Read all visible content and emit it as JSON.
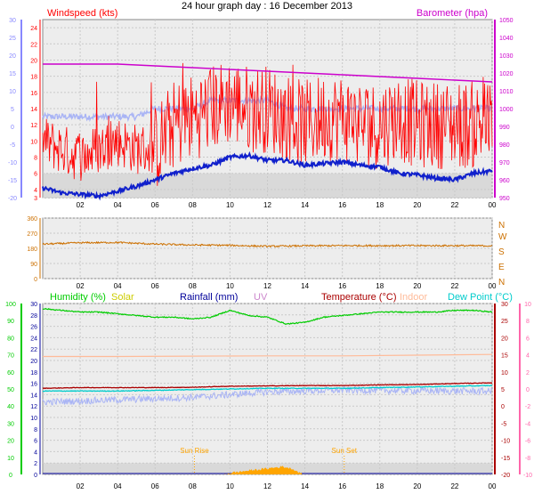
{
  "title": "24 hour graph day : 16 December 2013",
  "colors": {
    "plot_bg": "#ededed",
    "plot_bg_low": "#d9d9d9",
    "grid": "#c9c9c9",
    "wind": "#ff0000",
    "gust_light": "#a9b4f5",
    "wind_dark": "#1020cc",
    "baro": "#cc00cc",
    "dir": "#cc7000",
    "hum": "#00cc00",
    "solar": "#cccc00",
    "rain": "#000099",
    "uv": "#cc88cc",
    "temp": "#aa0000",
    "indoor": "#ffbb99",
    "dew": "#00cccc",
    "axis_left_blue": "#8888ff",
    "axis_pink": "#ff66aa",
    "sun": "#ffa500"
  },
  "chart_data": [
    {
      "type": "line",
      "panel": "wind",
      "left_axis_label": "Windspeed (kts)",
      "right_axis_label": "Barometer (hpa)",
      "x_ticks": [
        "02",
        "04",
        "06",
        "08",
        "10",
        "12",
        "14",
        "16",
        "18",
        "20",
        "22",
        "00"
      ],
      "y_left_ticks": [
        3,
        4,
        6,
        8,
        10,
        12,
        14,
        16,
        18,
        20,
        22,
        24
      ],
      "y_left_range": [
        3,
        25
      ],
      "y_outer_ticks": [
        30,
        25,
        20,
        15,
        10,
        5,
        0,
        -5,
        -10,
        -15,
        -20
      ],
      "y_right_ticks": [
        950,
        960,
        970,
        980,
        990,
        1000,
        1010,
        1020,
        1030,
        1040,
        1050
      ],
      "y_right_range": [
        950,
        1050
      ],
      "series": [
        {
          "name": "Windspeed (kts)",
          "axis": "left",
          "x": [
            0,
            1,
            2,
            3,
            4,
            5,
            6,
            7,
            8,
            9,
            10,
            11,
            12,
            13,
            14,
            15,
            16,
            17,
            18,
            19,
            20,
            21,
            22,
            23,
            24
          ],
          "values": [
            10,
            9,
            8,
            9,
            10,
            9,
            9,
            12,
            13,
            14,
            15,
            14,
            14,
            13,
            12,
            13,
            13,
            12,
            12,
            13,
            12,
            12,
            12,
            12,
            12
          ]
        },
        {
          "name": "Wind gust",
          "axis": "left",
          "x": [
            0,
            1,
            2,
            3,
            4,
            5,
            6,
            7,
            8,
            9,
            10,
            11,
            12,
            13,
            14,
            15,
            16,
            17,
            18,
            19,
            20,
            21,
            22,
            23,
            24
          ],
          "values": [
            13,
            13,
            13,
            13,
            13,
            13,
            14,
            14,
            14,
            15,
            15,
            15,
            15,
            14,
            14,
            14,
            14,
            14,
            14,
            14,
            14,
            14,
            14,
            14,
            14
          ]
        },
        {
          "name": "Barometer (hpa)",
          "axis": "right",
          "x": [
            0,
            2,
            4,
            6,
            8,
            10,
            12,
            14,
            16,
            18,
            20,
            22,
            24
          ],
          "values": [
            1025,
            1025,
            1025,
            1024,
            1023,
            1022,
            1021,
            1020,
            1019,
            1018,
            1017,
            1016,
            1015
          ]
        },
        {
          "name": "Average wind",
          "axis": "left",
          "x": [
            0,
            1,
            2,
            3,
            4,
            5,
            6,
            7,
            8,
            9,
            10,
            11,
            12,
            13,
            14,
            15,
            16,
            17,
            18,
            19,
            20,
            21,
            22,
            23,
            24
          ],
          "values": [
            4.2,
            3.6,
            3.4,
            3.2,
            3.8,
            4.4,
            5.2,
            6.0,
            6.6,
            7.0,
            8.0,
            8.2,
            7.6,
            7.6,
            7.0,
            7.2,
            7.4,
            7.0,
            6.8,
            6.0,
            5.8,
            5.4,
            5.2,
            6.0,
            6.3
          ]
        }
      ]
    },
    {
      "type": "line",
      "panel": "direction",
      "x_ticks": [
        "02",
        "04",
        "06",
        "08",
        "10",
        "12",
        "14",
        "16",
        "18",
        "20",
        "22",
        "00"
      ],
      "y_ticks": [
        0,
        90,
        180,
        270,
        360
      ],
      "compass_labels": [
        "N",
        "W",
        "S",
        "E",
        "N"
      ],
      "y_range": [
        0,
        360
      ],
      "series": [
        {
          "name": "Wind direction",
          "x": [
            0,
            2,
            4,
            6,
            8,
            10,
            12,
            14,
            16,
            18,
            20,
            22,
            24
          ],
          "values": [
            205,
            213,
            215,
            205,
            200,
            198,
            192,
            195,
            196,
            196,
            196,
            196,
            195
          ]
        }
      ]
    },
    {
      "type": "line",
      "panel": "environment",
      "legend": [
        "Humidity (%)",
        "Solar",
        "Rainfall (mm)",
        "UV",
        "Temperature (°C)",
        "Indoor",
        "Dew Point (°C)"
      ],
      "x_ticks": [
        "02",
        "04",
        "06",
        "08",
        "10",
        "12",
        "14",
        "16",
        "18",
        "20",
        "22",
        "00"
      ],
      "y_hum_ticks": [
        0,
        10,
        20,
        30,
        40,
        50,
        60,
        70,
        80,
        90,
        100
      ],
      "y_rain_ticks": [
        0,
        2,
        4,
        6,
        8,
        10,
        12,
        14,
        16,
        18,
        20,
        22,
        24,
        26,
        28,
        30
      ],
      "y_temp_ticks": [
        -20,
        -15,
        -10,
        -5,
        0,
        5,
        10,
        15,
        20,
        25,
        30
      ],
      "y_uv_ticks": [
        -10,
        -8,
        -6,
        -4,
        -2,
        0,
        2,
        4,
        6,
        8,
        10
      ],
      "sunrise_label": "Sun Rise",
      "sunset_label": "Sun Set",
      "sunrise_hour": 8.1,
      "sunset_hour": 16.1,
      "series": [
        {
          "name": "Humidity (%)",
          "axis": "hum",
          "x": [
            0,
            1,
            2,
            3,
            4,
            5,
            6,
            7,
            8,
            9,
            10,
            11,
            12,
            13,
            14,
            15,
            16,
            17,
            18,
            19,
            20,
            21,
            22,
            23,
            24
          ],
          "values": [
            97,
            96,
            95,
            95,
            94,
            93,
            92,
            92,
            91,
            92,
            96,
            93,
            92,
            88,
            89,
            92,
            93,
            94,
            95,
            95,
            95,
            95,
            96,
            96,
            95
          ]
        },
        {
          "name": "Indoor",
          "axis": "temp",
          "x": [
            0,
            4,
            8,
            12,
            16,
            20,
            24
          ],
          "values": [
            14.5,
            14.5,
            14.6,
            14.7,
            14.7,
            14.9,
            15.1
          ]
        },
        {
          "name": "Temperature (°C)",
          "axis": "temp",
          "x": [
            0,
            2,
            4,
            6,
            8,
            10,
            12,
            14,
            16,
            18,
            20,
            22,
            24
          ],
          "values": [
            5.2,
            5.4,
            5.4,
            5.4,
            5.5,
            5.8,
            5.9,
            6.0,
            6.0,
            6.2,
            6.3,
            6.6,
            6.8
          ]
        },
        {
          "name": "Dew Point (°C)",
          "axis": "temp",
          "x": [
            0,
            2,
            4,
            6,
            8,
            10,
            12,
            14,
            16,
            18,
            20,
            22,
            24
          ],
          "values": [
            4.4,
            4.4,
            4.4,
            4.6,
            4.8,
            5.0,
            5.2,
            5.2,
            5.2,
            5.4,
            5.6,
            5.8,
            6.0
          ]
        },
        {
          "name": "Solar",
          "axis": "solar",
          "x": [
            9.7,
            10.2,
            11,
            12,
            12.8,
            13.3,
            13.9
          ],
          "values": [
            0,
            1,
            2,
            3,
            4,
            3,
            0
          ]
        },
        {
          "name": "Rainfall (mm)",
          "axis": "rain",
          "x": [
            0,
            24
          ],
          "values": [
            0,
            0
          ]
        }
      ]
    }
  ]
}
